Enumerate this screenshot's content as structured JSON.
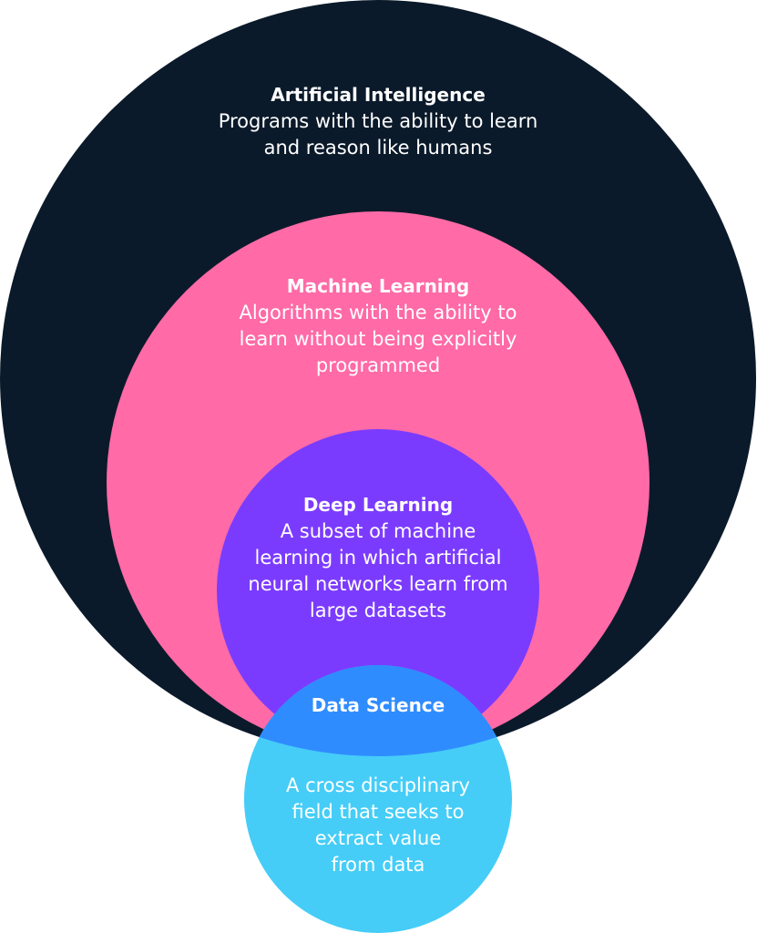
{
  "diagram": {
    "artificial_intelligence": {
      "title": "Artificial Intelligence",
      "description": "Programs with the ability to learn\nand reason like humans",
      "color": "#0b1a2a"
    },
    "machine_learning": {
      "title": "Machine Learning",
      "description": "Algorithms with the ability to\nlearn without being explicitly\nprogrammed",
      "color": "#ff6aa7"
    },
    "deep_learning": {
      "title": "Deep Learning",
      "description": "A subset of machine\nlearning in which artificial\nneural networks learn from\nlarge datasets",
      "color": "#7b3bff"
    },
    "data_science": {
      "title": "Data Science",
      "description": "A cross disciplinary\nfield that seeks to\nextract value\nfrom data",
      "color": "#45cdf7",
      "overlap_color": "#2f8cff"
    },
    "text_color": "#ffffff"
  }
}
